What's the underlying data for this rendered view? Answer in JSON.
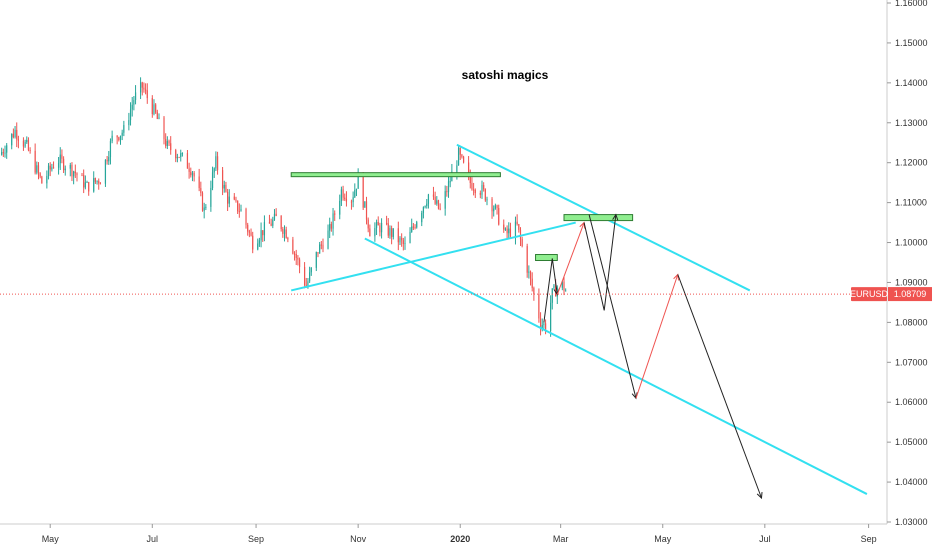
{
  "chart_data": {
    "type": "candlestick",
    "title": "",
    "annotation_text": "satoshi magics",
    "symbol": "EURUSD",
    "last_price": 1.08709,
    "last_price_label": "1.08709",
    "colors": {
      "up": "#26a69a",
      "down": "#ef5350",
      "channel": "#33e0f0",
      "zone_fill": "#90ee90",
      "zone_stroke": "#2e7d32",
      "path_black": "#222222",
      "path_red": "#ef5350",
      "badge": "#ef5350",
      "price_line": "#ef5350"
    },
    "y_axis": {
      "min": 1.03,
      "max": 1.16,
      "ticks": [
        "1.03000",
        "1.04000",
        "1.05000",
        "1.06000",
        "1.07000",
        "1.08000",
        "1.09000",
        "1.10000",
        "1.11000",
        "1.12000",
        "1.13000",
        "1.14000",
        "1.15000",
        "1.16000"
      ]
    },
    "x_axis": {
      "start": "2019-04-01",
      "end": "2020-09-12",
      "ticks": [
        {
          "date": "2019-05-01",
          "label": "May",
          "bold": false
        },
        {
          "date": "2019-07-01",
          "label": "Jul",
          "bold": false
        },
        {
          "date": "2019-09-01",
          "label": "Sep",
          "bold": false
        },
        {
          "date": "2019-11-01",
          "label": "Nov",
          "bold": false
        },
        {
          "date": "2020-01-01",
          "label": "2020",
          "bold": true
        },
        {
          "date": "2020-03-01",
          "label": "Mar",
          "bold": false
        },
        {
          "date": "2020-05-01",
          "label": "May",
          "bold": false
        },
        {
          "date": "2020-07-01",
          "label": "Jul",
          "bold": false
        },
        {
          "date": "2020-09-01",
          "label": "Sep",
          "bold": false
        }
      ]
    },
    "price_path": [
      [
        "2019-04-01",
        1.122
      ],
      [
        "2019-04-10",
        1.128
      ],
      [
        "2019-04-17",
        1.124
      ],
      [
        "2019-04-26",
        1.115
      ],
      [
        "2019-05-05",
        1.121
      ],
      [
        "2019-05-15",
        1.118
      ],
      [
        "2019-05-23",
        1.114
      ],
      [
        "2019-05-31",
        1.116
      ],
      [
        "2019-06-07",
        1.126
      ],
      [
        "2019-06-14",
        1.128
      ],
      [
        "2019-06-20",
        1.136
      ],
      [
        "2019-06-25",
        1.139
      ],
      [
        "2019-07-03",
        1.132
      ],
      [
        "2019-07-10",
        1.124
      ],
      [
        "2019-07-17",
        1.122
      ],
      [
        "2019-07-25",
        1.118
      ],
      [
        "2019-08-01",
        1.108
      ],
      [
        "2019-08-08",
        1.12
      ],
      [
        "2019-08-15",
        1.111
      ],
      [
        "2019-08-23",
        1.108
      ],
      [
        "2019-08-30",
        1.1
      ],
      [
        "2019-09-05",
        1.103
      ],
      [
        "2019-09-13",
        1.106
      ],
      [
        "2019-09-20",
        1.102
      ],
      [
        "2019-09-27",
        1.094
      ],
      [
        "2019-10-01",
        1.089
      ],
      [
        "2019-10-08",
        1.098
      ],
      [
        "2019-10-15",
        1.103
      ],
      [
        "2019-10-22",
        1.113
      ],
      [
        "2019-10-28",
        1.111
      ],
      [
        "2019-11-01",
        1.116
      ],
      [
        "2019-11-08",
        1.103
      ],
      [
        "2019-11-15",
        1.104
      ],
      [
        "2019-11-22",
        1.102
      ],
      [
        "2019-11-29",
        1.099
      ],
      [
        "2019-12-06",
        1.106
      ],
      [
        "2019-12-13",
        1.112
      ],
      [
        "2019-12-20",
        1.108
      ],
      [
        "2019-12-27",
        1.117
      ],
      [
        "2019-12-31",
        1.122
      ],
      [
        "2020-01-07",
        1.115
      ],
      [
        "2020-01-14",
        1.113
      ],
      [
        "2020-01-21",
        1.109
      ],
      [
        "2020-01-28",
        1.102
      ],
      [
        "2020-02-04",
        1.104
      ],
      [
        "2020-02-11",
        1.092
      ],
      [
        "2020-02-18",
        1.08
      ],
      [
        "2020-02-21",
        1.079
      ],
      [
        "2020-02-25",
        1.087
      ],
      [
        "2020-03-01",
        1.09
      ],
      [
        "2020-03-04",
        1.088
      ]
    ],
    "channel_lines": [
      {
        "from": [
          "2019-12-30",
          1.1245
        ],
        "to": [
          "2020-06-22",
          1.088
        ]
      },
      {
        "from": [
          "2019-11-05",
          1.101
        ],
        "to": [
          "2020-08-31",
          1.037
        ]
      },
      {
        "from": [
          "2019-09-22",
          1.088
        ],
        "to": [
          "2020-03-10",
          1.105
        ]
      }
    ],
    "resistance_line": {
      "from": [
        "2019-09-22",
        1.117
      ],
      "to": [
        "2020-01-25",
        1.117
      ]
    },
    "zones": [
      {
        "from": [
          "2020-02-15",
          1.097
        ],
        "to": [
          "2020-02-28",
          1.0955
        ]
      },
      {
        "from": [
          "2020-03-03",
          1.107
        ],
        "to": [
          "2020-04-13",
          1.1055
        ]
      }
    ],
    "projection_paths": [
      {
        "color": "black",
        "points": [
          [
            "2020-02-20",
            1.08
          ],
          [
            "2020-02-25",
            1.096
          ],
          [
            "2020-02-28",
            1.087
          ]
        ]
      },
      {
        "color": "red",
        "points": [
          [
            "2020-02-28",
            1.087
          ],
          [
            "2020-03-15",
            1.105
          ]
        ]
      },
      {
        "color": "black",
        "points": [
          [
            "2020-03-15",
            1.105
          ],
          [
            "2020-03-27",
            1.083
          ],
          [
            "2020-04-03",
            1.107
          ]
        ]
      },
      {
        "color": "black",
        "points": [
          [
            "2020-03-18",
            1.107
          ],
          [
            "2020-04-15",
            1.061
          ]
        ]
      },
      {
        "color": "red",
        "points": [
          [
            "2020-04-15",
            1.061
          ],
          [
            "2020-05-10",
            1.092
          ]
        ]
      },
      {
        "color": "black",
        "points": [
          [
            "2020-05-10",
            1.092
          ],
          [
            "2020-06-29",
            1.036
          ]
        ]
      }
    ]
  }
}
